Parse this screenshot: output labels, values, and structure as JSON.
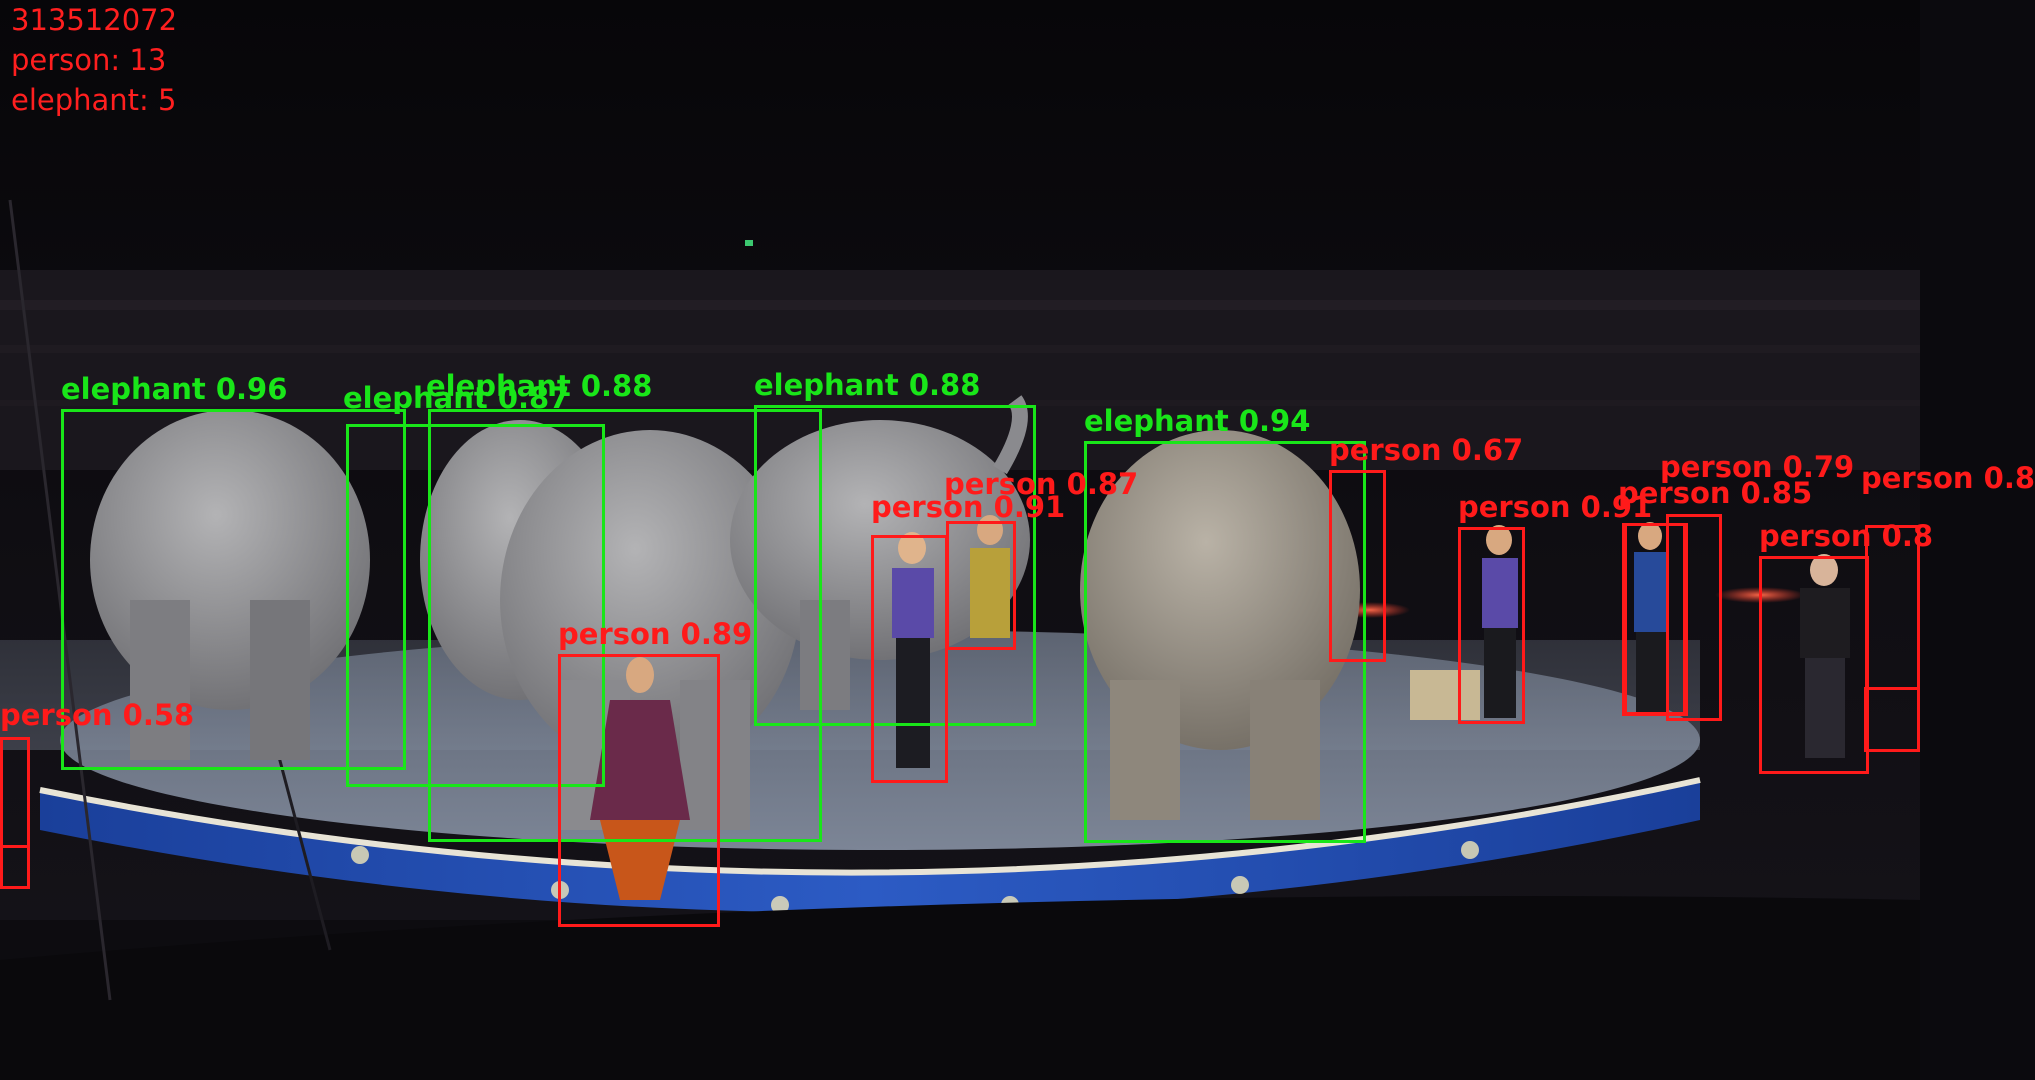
{
  "hud": {
    "frame_id": "313512072",
    "person_count": "person: 13",
    "elephant_count": "elephant: 5"
  },
  "colors": {
    "person": "#ff1a1a",
    "elephant": "#19e619",
    "hud_text": "#ff1f1f"
  },
  "detections": [
    {
      "name": "detection-elephant-1",
      "cls": "elephant",
      "label": "elephant 0.96"
    },
    {
      "name": "detection-elephant-2",
      "cls": "elephant",
      "label": "elephant 0.87"
    },
    {
      "name": "detection-elephant-3",
      "cls": "elephant",
      "label": "elephant 0.88"
    },
    {
      "name": "detection-elephant-4",
      "cls": "elephant",
      "label": "elephant 0.88"
    },
    {
      "name": "detection-elephant-5",
      "cls": "elephant",
      "label": "elephant 0.94"
    },
    {
      "name": "detection-person-1",
      "cls": "person",
      "label": "person 0.89"
    },
    {
      "name": "detection-person-2",
      "cls": "person",
      "label": "person 0.91"
    },
    {
      "name": "detection-person-3",
      "cls": "person",
      "label": "person 0.87"
    },
    {
      "name": "detection-person-4",
      "cls": "person",
      "label": "person 0.67"
    },
    {
      "name": "detection-person-5",
      "cls": "person",
      "label": "person 0.91"
    },
    {
      "name": "detection-person-6",
      "cls": "person",
      "label": "person 0.85"
    },
    {
      "name": "detection-person-7",
      "cls": "person",
      "label": "person 0.79"
    },
    {
      "name": "detection-person-8",
      "cls": "person",
      "label": "person 0.8"
    },
    {
      "name": "detection-person-9",
      "cls": "person",
      "label": "person 0.8"
    },
    {
      "name": "detection-person-10",
      "cls": "person",
      "label": "person 0.58"
    },
    {
      "name": "detection-person-11",
      "cls": "person",
      "label": ""
    },
    {
      "name": "detection-person-12",
      "cls": "person",
      "label": ""
    },
    {
      "name": "detection-person-13",
      "cls": "person",
      "label": ""
    }
  ]
}
